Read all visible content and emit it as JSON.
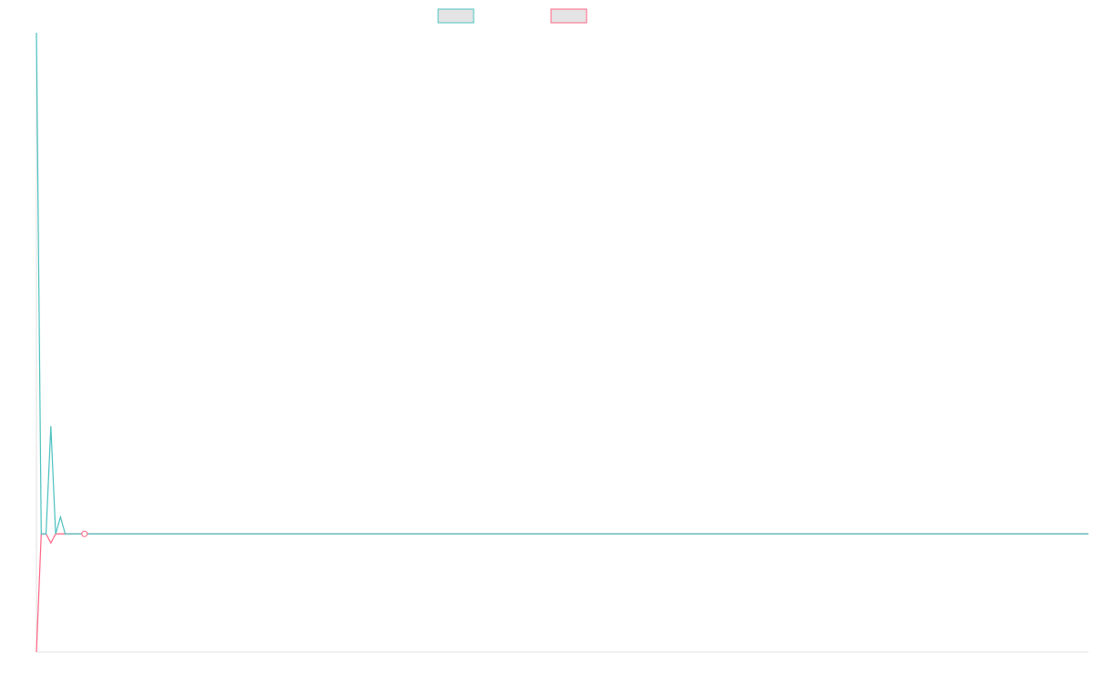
{
  "chart_data": {
    "type": "line",
    "title": "",
    "xlabel": "",
    "ylabel": "",
    "legend_position": "top-center",
    "grid": false,
    "x_range": [
      0,
      219
    ],
    "y_range": [
      -0.91,
      3.86
    ],
    "x": [
      0,
      1,
      2,
      3,
      4,
      5,
      6,
      7,
      8,
      9,
      10
    ],
    "series": [
      {
        "name": "",
        "color": "#4bc0c0",
        "fill": "#e4e4e4",
        "values": [
          3.86,
          0,
          0,
          0.83,
          0,
          0.13,
          0,
          0,
          0,
          0,
          0
        ]
      },
      {
        "name": "",
        "color": "#ff6384",
        "fill": "#e4e4e4",
        "values": [
          -0.91,
          0,
          0,
          -0.07,
          0,
          0,
          0,
          0,
          0,
          0,
          0
        ]
      }
    ]
  }
}
